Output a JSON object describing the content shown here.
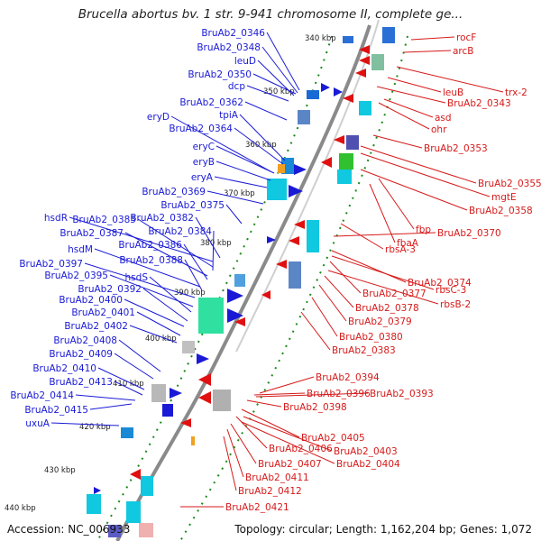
{
  "title": "Brucella abortus bv. 1 str. 9-941 chromosome II, complete ge...",
  "footer": {
    "accession": "Accession: NC_006933",
    "summary": "Topology: circular; Length: 1,162,204 bp; Genes: 1,072"
  },
  "ticks": [
    "340 kbp",
    "350 kbp",
    "360 kbp",
    "370 kbp",
    "380 kbp",
    "390 kbp",
    "400 kbp",
    "410 kbp",
    "420 kbp",
    "430 kbp",
    "440 kbp"
  ],
  "left_labels": [
    "BruAb2_0346",
    "BruAb2_0348",
    "leuD",
    "BruAb2_0350",
    "dcp",
    "BruAb2_0362",
    "tpiA",
    "eryD",
    "BruAb2_0364",
    "eryC",
    "eryB",
    "eryA",
    "BruAb2_0369",
    "BruAb2_0375",
    "BruAb2_0382",
    "hsdR",
    "BruAb2_0385",
    "BruAb2_0384",
    "BruAb2_0387",
    "BruAb2_0386",
    "hsdM",
    "BruAb2_0388",
    "BruAb2_0397",
    "BruAb2_0395",
    "hsdS",
    "BruAb2_0392",
    "BruAb2_0400",
    "BruAb2_0401",
    "BruAb2_0402",
    "BruAb2_0408",
    "BruAb2_0409",
    "BruAb2_0410",
    "BruAb2_0413",
    "BruAb2_0414",
    "BruAb2_0415",
    "uxuA"
  ],
  "right_labels": [
    "rocF",
    "arcB",
    "leuB",
    "trx-2",
    "BruAb2_0343",
    "asd",
    "ohr",
    "BruAb2_0353",
    "BruAb2_0355",
    "mgtE",
    "BruAb2_0358",
    "fbp",
    "fbaA",
    "BruAb2_0370",
    "rbsA-3",
    "BruAb2_0374",
    "rbsC-3",
    "BruAb2_0377",
    "rbsB-2",
    "BruAb2_0378",
    "BruAb2_0379",
    "BruAb2_0380",
    "BruAb2_0383",
    "BruAb2_0394",
    "BruAb2_0396",
    "BruAb2_0393",
    "BruAb2_0398",
    "BruAb2_0405",
    "BruAb2_0406",
    "BruAb2_0403",
    "BruAb2_0407",
    "BruAb2_0404",
    "BruAb2_0411",
    "BruAb2_0412",
    "BruAb2_0421"
  ],
  "colors": {
    "backbone": "#8a8a8a",
    "forward_cds": "#1a1ad6",
    "reverse_cds": "#e01010",
    "gc_skew": "#1a8a1a",
    "blue_labels": "#1a1ad6",
    "red_labels": "#d61a1a"
  }
}
